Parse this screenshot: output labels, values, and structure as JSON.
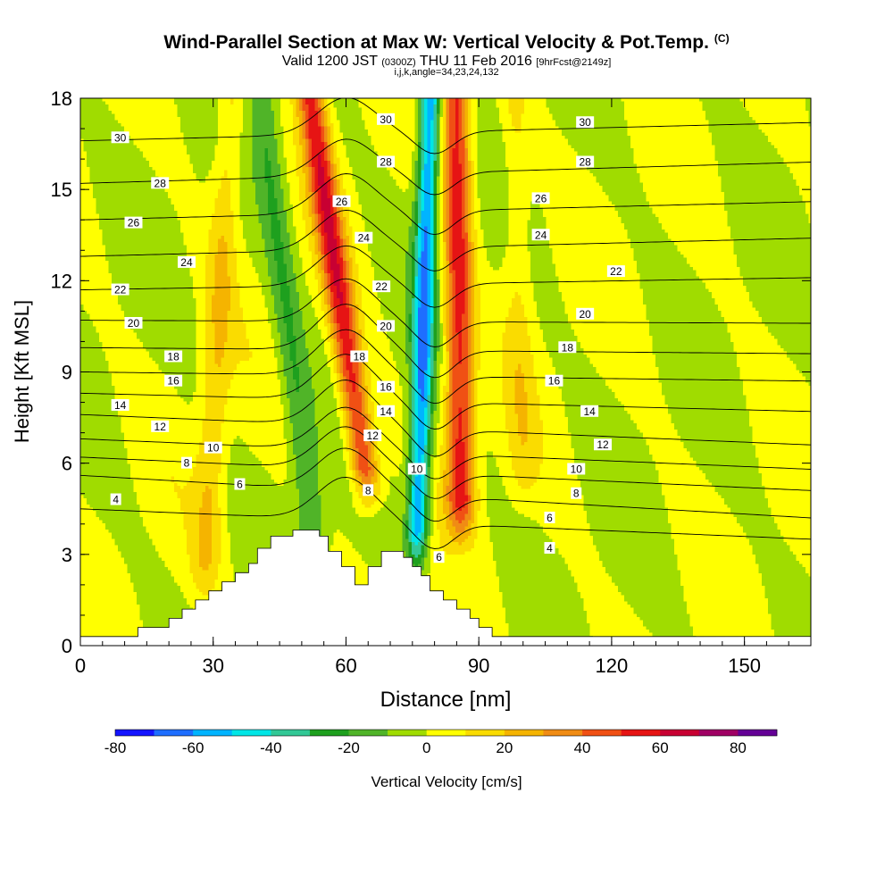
{
  "header": {
    "title": "Wind-Parallel Section at Max W: Vertical Velocity & Pot.Temp.",
    "copyright": "(C)",
    "valid_prefix": "Valid 1200 JST",
    "valid_utc": "(0300Z)",
    "valid_date": "THU 11 Feb 2016",
    "forecast": "[9hrFcst@2149z]",
    "indices": "i,j,k,angle=34,23,24,132"
  },
  "colors": {
    "bins": [
      "#1414ff",
      "#1e6eff",
      "#00b4ff",
      "#00e6e6",
      "#32c896",
      "#1ea01e",
      "#50b428",
      "#a0dc00",
      "#ffff00",
      "#fadc00",
      "#f5b400",
      "#f08c14",
      "#f05014",
      "#e61414",
      "#c80032",
      "#a00064",
      "#640096"
    ],
    "terrain": "#ffffff",
    "contour": "#000000"
  },
  "chart_data": {
    "type": "heatmap",
    "xlabel": "Distance [nm]",
    "ylabel": "Height [Kft MSL]",
    "xlim": [
      0,
      165
    ],
    "ylim": [
      0,
      18
    ],
    "xticks": [
      0,
      30,
      60,
      90,
      120,
      150
    ],
    "yticks": [
      0,
      3,
      6,
      9,
      12,
      15,
      18
    ],
    "field": "Vertical Velocity [cm/s]",
    "colorbar": {
      "label": "Vertical Velocity [cm/s]",
      "min": -80,
      "max": 90,
      "step": 10,
      "ticks": [
        -80,
        -60,
        -40,
        -20,
        0,
        20,
        40,
        60,
        80
      ]
    },
    "features": [
      {
        "kind": "updraft",
        "x_base": 86,
        "x_top": 85,
        "y_base": 4,
        "y_top": 18,
        "peak": 55
      },
      {
        "kind": "updraft",
        "x_base": 65,
        "x_top": 52,
        "y_base": 5,
        "y_top": 18,
        "peak": 55
      },
      {
        "kind": "downdraft",
        "x_base": 76,
        "x_top": 79,
        "y_base": 3,
        "y_top": 18,
        "peak": -60
      },
      {
        "kind": "downdraft",
        "x_base": 53,
        "x_top": 41,
        "y_base": 3,
        "y_top": 18,
        "peak": -20
      },
      {
        "kind": "updraft",
        "x_base": 28,
        "x_top": 34,
        "y_base": 2,
        "y_top": 18,
        "peak": 18
      },
      {
        "kind": "updraft",
        "x_base": 100,
        "x_top": 98,
        "y_base": 5,
        "y_top": 18,
        "peak": 12
      }
    ],
    "terrain": [
      {
        "x": 10,
        "h": 0.3
      },
      {
        "x": 13,
        "h": 0.6
      },
      {
        "x": 20,
        "h": 0.9
      },
      {
        "x": 23,
        "h": 1.2
      },
      {
        "x": 26,
        "h": 1.5
      },
      {
        "x": 29,
        "h": 1.8
      },
      {
        "x": 32,
        "h": 2.1
      },
      {
        "x": 35,
        "h": 2.4
      },
      {
        "x": 38,
        "h": 2.7
      },
      {
        "x": 40,
        "h": 3.2
      },
      {
        "x": 43,
        "h": 3.6
      },
      {
        "x": 48,
        "h": 3.8
      },
      {
        "x": 54,
        "h": 3.6
      },
      {
        "x": 56,
        "h": 3.1
      },
      {
        "x": 59,
        "h": 2.6
      },
      {
        "x": 62,
        "h": 2.0
      },
      {
        "x": 65,
        "h": 2.6
      },
      {
        "x": 68,
        "h": 3.1
      },
      {
        "x": 73,
        "h": 2.9
      },
      {
        "x": 75,
        "h": 2.6
      },
      {
        "x": 77,
        "h": 2.3
      },
      {
        "x": 79,
        "h": 1.8
      },
      {
        "x": 82,
        "h": 1.5
      },
      {
        "x": 85,
        "h": 1.2
      },
      {
        "x": 88,
        "h": 0.9
      },
      {
        "x": 90,
        "h": 0.6
      },
      {
        "x": 93,
        "h": 0.3
      },
      {
        "x": 96,
        "h": 0.3
      }
    ],
    "contours": [
      {
        "level": 4,
        "label": "4",
        "label_x": 8,
        "label_y": 4.8,
        "base_left": 4.5,
        "base_right": 3.5,
        "wave": 1.4
      },
      {
        "level": 4,
        "label": "4",
        "label_x": 106,
        "label_y": 3.2
      },
      {
        "level": 6,
        "label": "6",
        "label_x": 36,
        "label_y": 5.3,
        "base_left": 5.6,
        "base_right": 4.2,
        "wave": 1.4
      },
      {
        "level": 6,
        "label": "6",
        "label_x": 106,
        "label_y": 4.2
      },
      {
        "level": 6,
        "label": "6",
        "label_x": 81,
        "label_y": 2.9
      },
      {
        "level": 8,
        "label": "8",
        "label_x": 24,
        "label_y": 6.0,
        "base_left": 6.2,
        "base_right": 5.1,
        "wave": 1.4
      },
      {
        "level": 8,
        "label": "8",
        "label_x": 65,
        "label_y": 5.1
      },
      {
        "level": 8,
        "label": "8",
        "label_x": 112,
        "label_y": 5.0
      },
      {
        "level": 10,
        "label": "10",
        "label_x": 30,
        "label_y": 6.5,
        "base_left": 6.8,
        "base_right": 5.8,
        "wave": 1.4
      },
      {
        "level": 10,
        "label": "10",
        "label_x": 76,
        "label_y": 5.8
      },
      {
        "level": 10,
        "label": "10",
        "label_x": 112,
        "label_y": 5.8
      },
      {
        "level": 12,
        "label": "12",
        "label_x": 18,
        "label_y": 7.2,
        "base_left": 7.6,
        "base_right": 6.6,
        "wave": 1.5
      },
      {
        "level": 12,
        "label": "12",
        "label_x": 66,
        "label_y": 6.9
      },
      {
        "level": 12,
        "label": "12",
        "label_x": 118,
        "label_y": 6.6
      },
      {
        "level": 14,
        "label": "14",
        "label_x": 9,
        "label_y": 7.9,
        "base_left": 8.3,
        "base_right": 7.7,
        "wave": 1.5
      },
      {
        "level": 14,
        "label": "14",
        "label_x": 69,
        "label_y": 7.7
      },
      {
        "level": 14,
        "label": "14",
        "label_x": 115,
        "label_y": 7.7
      },
      {
        "level": 16,
        "label": "16",
        "label_x": 21,
        "label_y": 8.7,
        "base_left": 9.0,
        "base_right": 8.7,
        "wave": 1.5
      },
      {
        "level": 16,
        "label": "16",
        "label_x": 69,
        "label_y": 8.5
      },
      {
        "level": 16,
        "label": "16",
        "label_x": 107,
        "label_y": 8.7
      },
      {
        "level": 18,
        "label": "18",
        "label_x": 21,
        "label_y": 9.5,
        "base_left": 9.8,
        "base_right": 9.6,
        "wave": 1.5
      },
      {
        "level": 18,
        "label": "18",
        "label_x": 63,
        "label_y": 9.5
      },
      {
        "level": 18,
        "label": "18",
        "label_x": 110,
        "label_y": 9.8
      },
      {
        "level": 20,
        "label": "20",
        "label_x": 12,
        "label_y": 10.6,
        "base_left": 10.7,
        "base_right": 10.6,
        "wave": 1.4
      },
      {
        "level": 20,
        "label": "20",
        "label_x": 69,
        "label_y": 10.5
      },
      {
        "level": 20,
        "label": "20",
        "label_x": 114,
        "label_y": 10.9
      },
      {
        "level": 22,
        "label": "22",
        "label_x": 9,
        "label_y": 11.7,
        "base_left": 11.7,
        "base_right": 12.1,
        "wave": 1.3
      },
      {
        "level": 22,
        "label": "22",
        "label_x": 68,
        "label_y": 11.8
      },
      {
        "level": 22,
        "label": "22",
        "label_x": 121,
        "label_y": 12.3
      },
      {
        "level": 24,
        "label": "24",
        "label_x": 24,
        "label_y": 12.6,
        "base_left": 12.8,
        "base_right": 13.4,
        "wave": 1.3
      },
      {
        "level": 24,
        "label": "24",
        "label_x": 64,
        "label_y": 13.4
      },
      {
        "level": 24,
        "label": "24",
        "label_x": 104,
        "label_y": 13.5
      },
      {
        "level": 26,
        "label": "26",
        "label_x": 12,
        "label_y": 13.9,
        "base_left": 14.0,
        "base_right": 14.6,
        "wave": 1.3
      },
      {
        "level": 26,
        "label": "26",
        "label_x": 59,
        "label_y": 14.6
      },
      {
        "level": 26,
        "label": "26",
        "label_x": 104,
        "label_y": 14.7
      },
      {
        "level": 28,
        "label": "28",
        "label_x": 18,
        "label_y": 15.2,
        "base_left": 15.2,
        "base_right": 15.9,
        "wave": 1.2
      },
      {
        "level": 28,
        "label": "28",
        "label_x": 69,
        "label_y": 15.9
      },
      {
        "level": 28,
        "label": "28",
        "label_x": 114,
        "label_y": 15.9
      },
      {
        "level": 30,
        "label": "30",
        "label_x": 9,
        "label_y": 16.7,
        "base_left": 16.6,
        "base_right": 17.2,
        "wave": 1.2
      },
      {
        "level": 30,
        "label": "30",
        "label_x": 69,
        "label_y": 17.3
      },
      {
        "level": 30,
        "label": "30",
        "label_x": 114,
        "label_y": 17.2
      }
    ]
  }
}
